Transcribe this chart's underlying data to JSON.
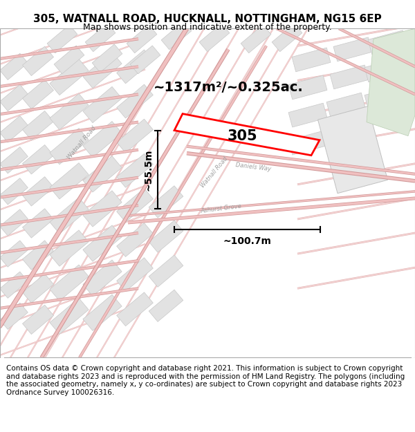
{
  "title_line1": "305, WATNALL ROAD, HUCKNALL, NOTTINGHAM, NG15 6EP",
  "title_line2": "Map shows position and indicative extent of the property.",
  "footer_text": "Contains OS data © Crown copyright and database right 2021. This information is subject to Crown copyright and database rights 2023 and is reproduced with the permission of HM Land Registry. The polygons (including the associated geometry, namely x, y co-ordinates) are subject to Crown copyright and database rights 2023 Ordnance Survey 100026316.",
  "area_label": "~1317m²/~0.325ac.",
  "property_number": "305",
  "width_label": "~100.7m",
  "height_label": "~55.5m",
  "map_bg": "#f9f6f6",
  "road_line_color": "#e8a8a8",
  "road_outline_color": "#d09090",
  "building_fill": "#e0e0e0",
  "building_outline": "#c0c0c0",
  "highlight_color": "#ff0000",
  "green_fill": "#d8e8d0",
  "annotation_color": "#000000",
  "road_label_color": "#a0a0a0",
  "title_fontsize": 11,
  "subtitle_fontsize": 9,
  "footer_fontsize": 7.5
}
